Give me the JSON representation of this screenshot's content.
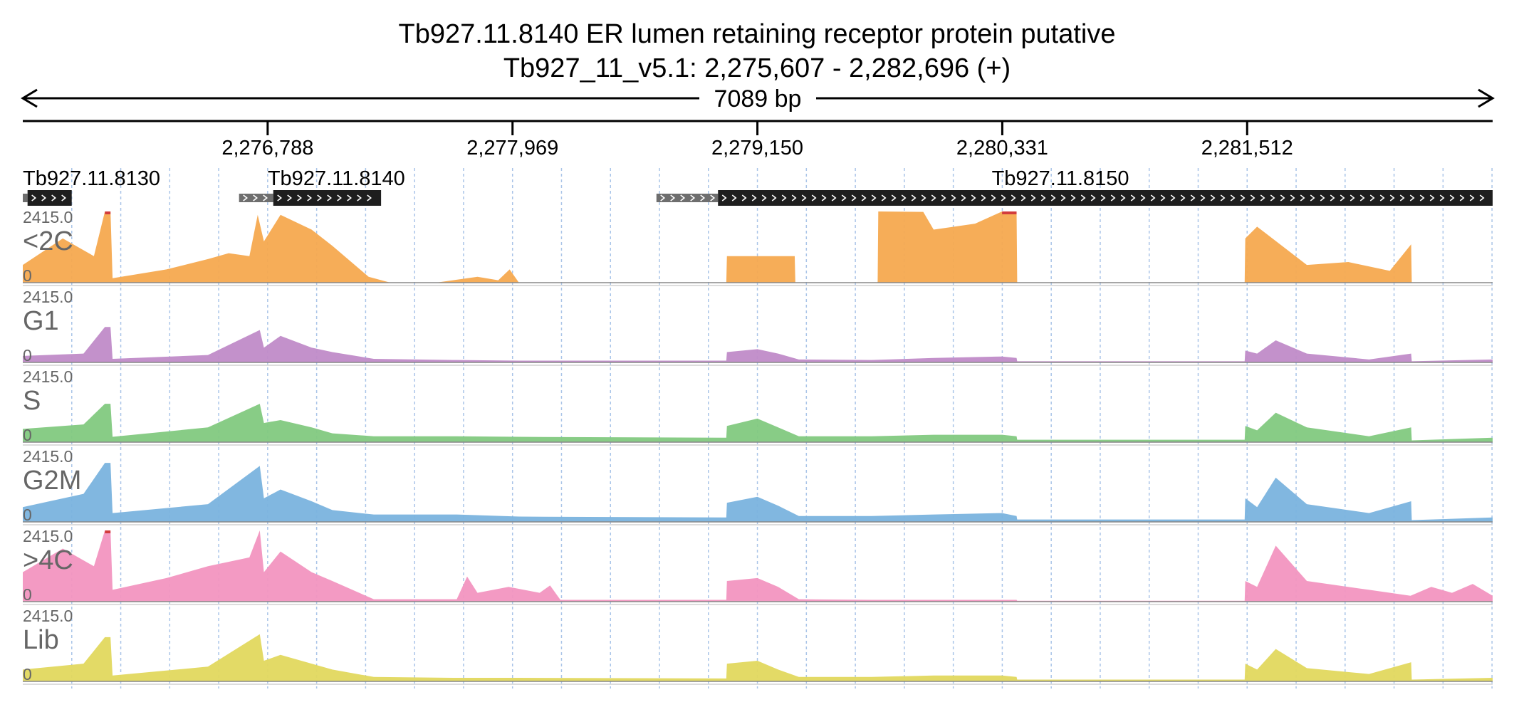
{
  "title": {
    "line1": "Tb927.11.8140  ER lumen retaining receptor protein  putative",
    "line2": "Tb927_11_v5.1: 2,275,607 - 2,282,696 (+)"
  },
  "span_label": "7089 bp",
  "chart_data": {
    "type": "area",
    "chromosome": "Tb927_11_v5.1",
    "region": {
      "start": 2275607,
      "end": 2282696,
      "strand": "+"
    },
    "xlim": [
      2275607,
      2282696
    ],
    "x_ticks": [
      {
        "value": 2276788,
        "label": "2,276,788"
      },
      {
        "value": 2277969,
        "label": "2,277,969"
      },
      {
        "value": 2279150,
        "label": "2,279,150"
      },
      {
        "value": 2280331,
        "label": "2,280,331"
      },
      {
        "value": 2281512,
        "label": "2,281,512"
      }
    ],
    "genes": [
      {
        "name": "Tb927.11.8130",
        "utr": [
          2275607,
          2275630
        ],
        "cds": [
          2275630,
          2275843
        ],
        "label_at": 2275607
      },
      {
        "name": "Tb927.11.8140",
        "utr": [
          2276650,
          2276815
        ],
        "cds": [
          2276815,
          2277335
        ],
        "label_at": 2276788
      },
      {
        "name": "Tb927.11.8150",
        "utr": [
          2278663,
          2278960
        ],
        "cds": [
          2278960,
          2282696
        ],
        "label_at": 2280280
      }
    ],
    "tracks": [
      {
        "name": "<2C",
        "color": "#f5a94f",
        "ymin": 0,
        "ymax": 2415.0,
        "x": [
          2275607,
          2275800,
          2275950,
          2276003,
          2276030,
          2276040,
          2276300,
          2276500,
          2276600,
          2276700,
          2276740,
          2276770,
          2276850,
          2277000,
          2277100,
          2277275,
          2277380,
          2277600,
          2277800,
          2277900,
          2277955,
          2278000,
          2279000,
          2279003,
          2279150,
          2279330,
          2279333,
          2279730,
          2279733,
          2279950,
          2280000,
          2280200,
          2280330,
          2280400,
          2280403,
          2281500,
          2281503,
          2281560,
          2281800,
          2282000,
          2282200,
          2282303,
          2282306,
          2282696
        ],
        "y": [
          600,
          1500,
          900,
          2415,
          2415,
          150,
          450,
          800,
          1000,
          900,
          2300,
          1400,
          2300,
          1800,
          1250,
          200,
          0,
          0,
          200,
          80,
          450,
          0,
          0,
          900,
          900,
          900,
          0,
          0,
          2415,
          2400,
          1800,
          2000,
          2415,
          2415,
          0,
          0,
          1500,
          1900,
          600,
          700,
          400,
          1300,
          0,
          0
        ]
      },
      {
        "name": "G1",
        "color": "#c08bc8",
        "ymin": 0,
        "ymax": 2415.0,
        "x": [
          2275607,
          2275900,
          2276003,
          2276030,
          2276040,
          2276500,
          2276750,
          2276770,
          2276850,
          2277000,
          2277100,
          2277300,
          2277700,
          2278000,
          2279000,
          2279003,
          2279150,
          2279250,
          2279350,
          2279700,
          2280000,
          2280330,
          2280400,
          2280403,
          2281500,
          2281503,
          2281560,
          2281650,
          2281800,
          2282100,
          2282303,
          2282306,
          2282696
        ],
        "y": [
          220,
          300,
          1200,
          1200,
          120,
          250,
          1100,
          500,
          900,
          500,
          350,
          120,
          80,
          60,
          60,
          350,
          450,
          300,
          100,
          80,
          150,
          200,
          150,
          40,
          40,
          400,
          300,
          750,
          300,
          100,
          300,
          40,
          100
        ]
      },
      {
        "name": "S",
        "color": "#82c97f",
        "ymin": 0,
        "ymax": 2415.0,
        "x": [
          2275607,
          2275900,
          2276003,
          2276030,
          2276040,
          2276500,
          2276750,
          2276770,
          2276850,
          2277000,
          2277100,
          2277300,
          2277700,
          2278000,
          2279000,
          2279003,
          2279150,
          2279250,
          2279350,
          2279700,
          2280000,
          2280330,
          2280400,
          2280403,
          2281500,
          2281503,
          2281560,
          2281650,
          2281800,
          2282100,
          2282303,
          2282306,
          2282696
        ],
        "y": [
          450,
          600,
          1300,
          1300,
          180,
          500,
          1300,
          650,
          750,
          500,
          300,
          200,
          200,
          180,
          150,
          550,
          800,
          500,
          200,
          200,
          250,
          250,
          200,
          80,
          80,
          550,
          400,
          1000,
          500,
          200,
          500,
          60,
          150
        ]
      },
      {
        "name": "G2M",
        "color": "#7ab3de",
        "ymin": 0,
        "ymax": 2415.0,
        "x": [
          2275607,
          2275900,
          2276003,
          2276030,
          2276040,
          2276500,
          2276750,
          2276770,
          2276850,
          2277000,
          2277100,
          2277300,
          2277700,
          2278000,
          2279000,
          2279003,
          2279150,
          2279250,
          2279350,
          2279700,
          2280000,
          2280330,
          2280400,
          2280403,
          2281500,
          2281503,
          2281560,
          2281650,
          2281800,
          2282100,
          2282303,
          2282306,
          2282696
        ],
        "y": [
          500,
          950,
          2000,
          2000,
          300,
          600,
          1900,
          800,
          1100,
          700,
          400,
          250,
          250,
          180,
          150,
          650,
          850,
          550,
          200,
          200,
          250,
          300,
          200,
          80,
          80,
          800,
          500,
          1500,
          600,
          300,
          700,
          60,
          150
        ]
      },
      {
        "name": ">4C",
        "color": "#f295c0",
        "ymin": 0,
        "ymax": 2415.0,
        "x": [
          2275607,
          2275800,
          2275950,
          2276003,
          2276030,
          2276040,
          2276300,
          2276500,
          2276700,
          2276750,
          2276770,
          2276850,
          2277000,
          2277100,
          2277300,
          2277700,
          2277750,
          2277800,
          2277950,
          2278100,
          2278150,
          2278200,
          2279000,
          2279003,
          2279150,
          2279250,
          2279350,
          2279700,
          2280000,
          2280330,
          2280400,
          2280403,
          2281500,
          2281503,
          2281560,
          2281650,
          2281800,
          2282100,
          2282300,
          2282400,
          2282500,
          2282600,
          2282696
        ],
        "y": [
          1000,
          1800,
          1200,
          2415,
          2415,
          400,
          800,
          1200,
          1500,
          2415,
          1000,
          1700,
          1000,
          700,
          80,
          80,
          850,
          300,
          500,
          300,
          550,
          60,
          60,
          700,
          800,
          500,
          80,
          60,
          60,
          60,
          60,
          30,
          30,
          700,
          500,
          1900,
          700,
          400,
          200,
          500,
          300,
          600,
          200
        ]
      },
      {
        "name": "Lib",
        "color": "#e2d85e",
        "ymin": 0,
        "ymax": 2415.0,
        "x": [
          2275607,
          2275900,
          2276003,
          2276030,
          2276040,
          2276500,
          2276750,
          2276770,
          2276850,
          2277000,
          2277100,
          2277300,
          2277700,
          2278000,
          2279000,
          2279003,
          2279150,
          2279250,
          2279350,
          2279700,
          2280000,
          2280330,
          2280400,
          2280403,
          2281500,
          2281503,
          2281560,
          2281650,
          2281800,
          2282100,
          2282303,
          2282306,
          2282696
        ],
        "y": [
          400,
          600,
          1500,
          1500,
          200,
          500,
          1600,
          700,
          900,
          600,
          400,
          150,
          120,
          120,
          100,
          600,
          700,
          400,
          150,
          150,
          200,
          200,
          150,
          60,
          60,
          600,
          400,
          1100,
          450,
          250,
          650,
          60,
          120
        ]
      }
    ]
  }
}
